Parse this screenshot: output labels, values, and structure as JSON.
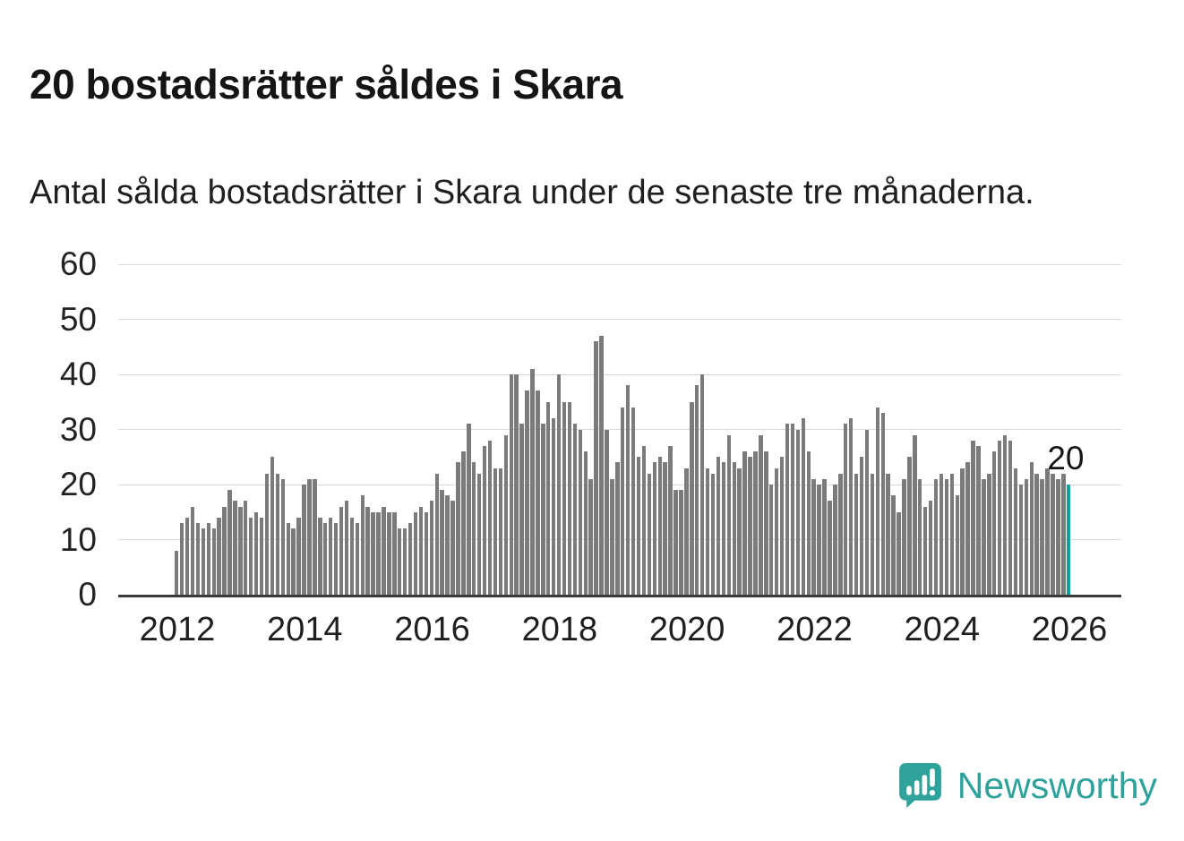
{
  "header": {
    "title": "20 bostadsrätter såldes i Skara",
    "subtitle": "Antal sålda bostadsrätter i Skara under de senaste tre månaderna."
  },
  "chart_data": {
    "type": "bar",
    "title": "20 bostadsrätter såldes i Skara",
    "xlabel": "",
    "ylabel": "",
    "ylim": [
      0,
      60
    ],
    "y_ticks": [
      0,
      10,
      20,
      30,
      40,
      50,
      60
    ],
    "x_tick_labels": [
      "2012",
      "2014",
      "2016",
      "2018",
      "2020",
      "2022",
      "2024",
      "2026"
    ],
    "x_start_year": 2012,
    "x_unit": "month",
    "grid": "horizontal",
    "legend": "none",
    "values": [
      8,
      13,
      14,
      16,
      13,
      12,
      13,
      12,
      14,
      16,
      19,
      17,
      16,
      17,
      14,
      15,
      14,
      22,
      25,
      22,
      21,
      13,
      12,
      14,
      20,
      21,
      21,
      14,
      13,
      14,
      13,
      16,
      17,
      14,
      13,
      18,
      16,
      15,
      15,
      16,
      15,
      15,
      12,
      12,
      13,
      15,
      16,
      15,
      17,
      22,
      19,
      18,
      17,
      24,
      26,
      31,
      24,
      22,
      27,
      28,
      23,
      23,
      29,
      40,
      40,
      31,
      37,
      41,
      37,
      31,
      35,
      32,
      40,
      35,
      35,
      31,
      30,
      26,
      21,
      46,
      47,
      30,
      21,
      24,
      34,
      38,
      34,
      25,
      27,
      22,
      24,
      25,
      24,
      27,
      19,
      19,
      23,
      35,
      38,
      40,
      23,
      22,
      25,
      24,
      29,
      24,
      23,
      26,
      25,
      26,
      29,
      26,
      20,
      23,
      25,
      31,
      31,
      30,
      32,
      26,
      21,
      20,
      21,
      17,
      20,
      22,
      31,
      32,
      22,
      25,
      30,
      22,
      34,
      33,
      22,
      18,
      15,
      21,
      25,
      29,
      21,
      16,
      17,
      21,
      22,
      21,
      22,
      18,
      23,
      24,
      28,
      27,
      21,
      22,
      26,
      28,
      29,
      28,
      23,
      20,
      21,
      24,
      22,
      21,
      23,
      22,
      21,
      22,
      20
    ],
    "highlight_index": 168,
    "highlight_value": 20,
    "annotation": {
      "text": "20"
    },
    "bar_color": "#7b7b7b",
    "highlight_color": "#00a49c",
    "grid_color": "#d9d9d9",
    "axis_color": "#3a3a3a"
  },
  "footer": {
    "brand": "Newsworthy",
    "brand_color": "#2fa29c"
  }
}
